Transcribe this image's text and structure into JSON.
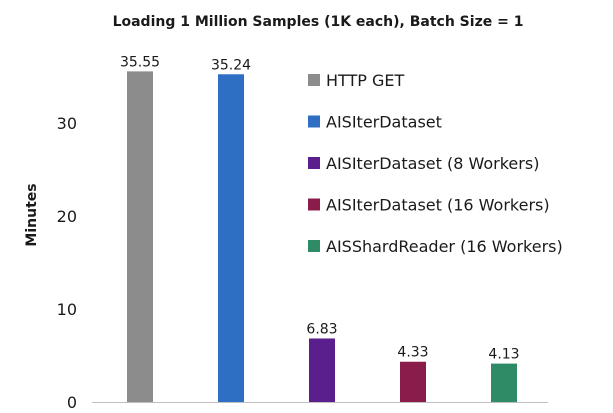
{
  "chart_data": {
    "type": "bar",
    "title": "Loading 1 Million Samples (1K each), Batch Size = 1",
    "xlabel": "",
    "ylabel": "Minutes",
    "ylim": [
      0,
      37
    ],
    "yticks": [
      0,
      10,
      20,
      30
    ],
    "grid": false,
    "legend_position": "right",
    "categories": [
      "HTTP GET",
      "AISIterDataset",
      "AISIterDataset (8 Workers)",
      "AISIterDataset (16 Workers)",
      "AISShardReader (16 Workers)"
    ],
    "values": [
      35.55,
      35.24,
      6.83,
      4.33,
      4.13
    ],
    "value_labels": [
      "35.55",
      "35.24",
      "6.83",
      "4.33",
      "4.13"
    ],
    "colors": [
      "#8c8c8c",
      "#2e6fc4",
      "#5a1f8c",
      "#8a1c4c",
      "#2f8a66"
    ]
  }
}
